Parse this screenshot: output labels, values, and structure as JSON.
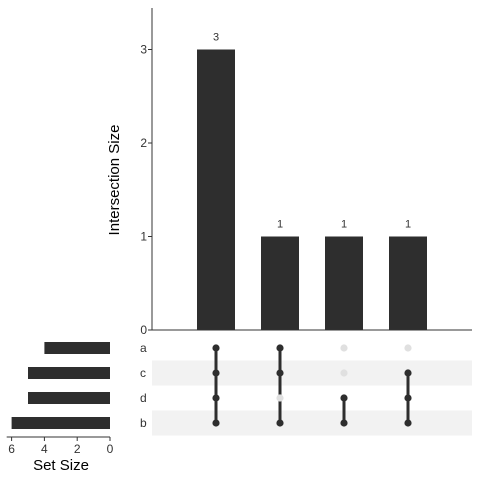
{
  "chart_data": {
    "type": "bar",
    "subtype": "upset",
    "ylabel": "Intersection Size",
    "ylim": [
      0,
      3.5
    ],
    "yticks": [
      0,
      1,
      2,
      3
    ],
    "intersections": [
      {
        "sets": [
          "a",
          "c",
          "d",
          "b"
        ],
        "size": 3
      },
      {
        "sets": [
          "a",
          "c",
          "b"
        ],
        "size": 1
      },
      {
        "sets": [
          "d",
          "b"
        ],
        "size": 1
      },
      {
        "sets": [
          "c",
          "d",
          "b"
        ],
        "size": 1
      }
    ],
    "sets": [
      "a",
      "c",
      "d",
      "b"
    ],
    "set_size_label": "Set Size",
    "set_sizes": [
      4,
      5,
      5,
      6
    ],
    "set_size_ticks": [
      6,
      4,
      2,
      0
    ],
    "set_size_xlim": [
      0,
      6.3
    ],
    "colors": {
      "bar": "#2e2e2e",
      "dot_active": "#2e2e2e",
      "dot_inactive": "#e0e0e0",
      "stripe": "#f2f2f2",
      "axis": "#333333"
    }
  }
}
